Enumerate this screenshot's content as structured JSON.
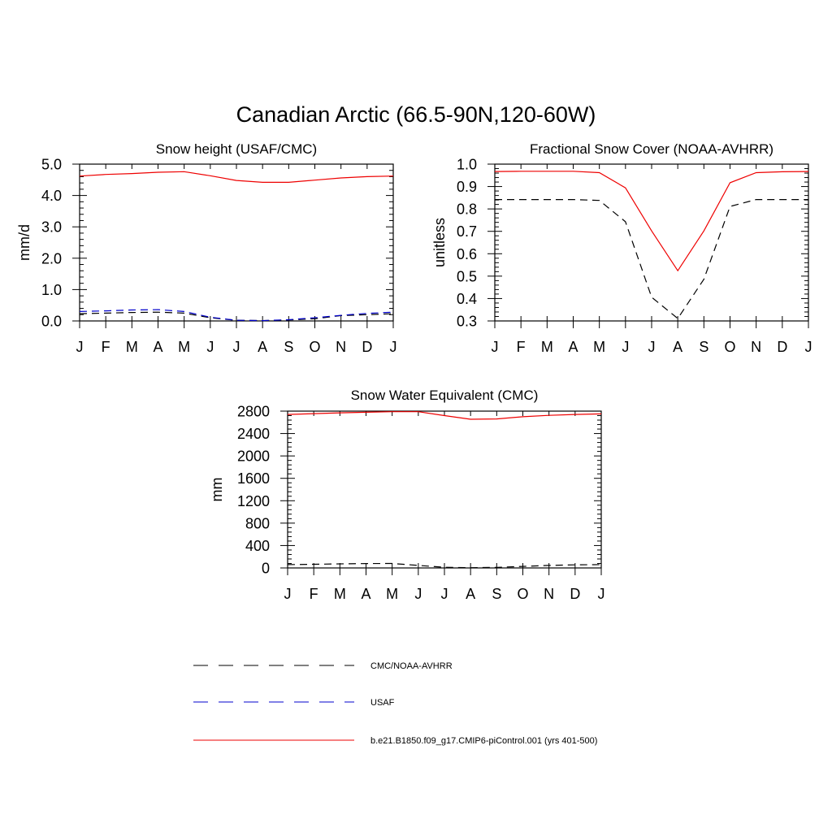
{
  "main_title": "Canadian Arctic (66.5-90N,120-60W)",
  "legend": {
    "entries": [
      {
        "label": "CMC/NOAA-AVHRR",
        "color": "#000000",
        "dash": "dashed"
      },
      {
        "label": "USAF",
        "color": "#0000cc",
        "dash": "dashed"
      },
      {
        "label": "b.e21.B1850.f09_g17.CMIP6-piControl.001 (yrs 401-500)",
        "color": "#ee0000",
        "dash": "solid"
      }
    ]
  },
  "chart_data": [
    {
      "type": "line",
      "title": "Snow height (USAF/CMC)",
      "ylabel": "mm/d",
      "xlabel": "",
      "categories": [
        "J",
        "F",
        "M",
        "A",
        "M",
        "J",
        "J",
        "A",
        "S",
        "O",
        "N",
        "D",
        "J"
      ],
      "yticks": [
        "0.0",
        "1.0",
        "2.0",
        "3.0",
        "4.0",
        "5.0"
      ],
      "ylim": [
        0,
        5
      ],
      "series": [
        {
          "name": "b.e21.B1850.f09_g17.CMIP6-piControl.001 (yrs 401-500)",
          "color": "#ee0000",
          "dash": "solid",
          "values": [
            4.62,
            4.67,
            4.7,
            4.74,
            4.76,
            4.63,
            4.48,
            4.42,
            4.42,
            4.49,
            4.56,
            4.6,
            4.62
          ]
        },
        {
          "name": "CMC/NOAA-AVHRR",
          "color": "#000000",
          "dash": "dashed",
          "values": [
            0.23,
            0.25,
            0.27,
            0.28,
            0.25,
            0.1,
            0.02,
            0.01,
            0.03,
            0.07,
            0.17,
            0.2,
            0.23
          ]
        },
        {
          "name": "USAF",
          "color": "#0000cc",
          "dash": "dashed",
          "values": [
            0.3,
            0.32,
            0.35,
            0.36,
            0.3,
            0.12,
            0.02,
            0.01,
            0.04,
            0.1,
            0.18,
            0.24,
            0.28
          ]
        }
      ]
    },
    {
      "type": "line",
      "title": "Fractional Snow Cover (NOAA-AVHRR)",
      "ylabel": "unitless",
      "xlabel": "",
      "categories": [
        "J",
        "F",
        "M",
        "A",
        "M",
        "J",
        "J",
        "A",
        "S",
        "O",
        "N",
        "D",
        "J"
      ],
      "yticks": [
        "0.3",
        "0.4",
        "0.5",
        "0.6",
        "0.7",
        "0.8",
        "0.9",
        "1.0"
      ],
      "ylim": [
        0.3,
        1.0
      ],
      "series": [
        {
          "name": "b.e21.B1850.f09_g17.CMIP6-piControl.001 (yrs 401-500)",
          "color": "#ee0000",
          "dash": "solid",
          "values": [
            0.967,
            0.968,
            0.968,
            0.968,
            0.962,
            0.894,
            0.702,
            0.524,
            0.702,
            0.917,
            0.962,
            0.966,
            0.967
          ]
        },
        {
          "name": "CMC/NOAA-AVHRR",
          "color": "#000000",
          "dash": "dashed",
          "values": [
            0.842,
            0.842,
            0.842,
            0.842,
            0.838,
            0.743,
            0.406,
            0.311,
            0.486,
            0.811,
            0.842,
            0.842,
            0.842
          ]
        }
      ]
    },
    {
      "type": "line",
      "title": "Snow Water Equivalent (CMC)",
      "ylabel": "mm",
      "xlabel": "",
      "categories": [
        "J",
        "F",
        "M",
        "A",
        "M",
        "J",
        "J",
        "A",
        "S",
        "O",
        "N",
        "D",
        "J"
      ],
      "yticks": [
        "0",
        "400",
        "800",
        "1200",
        "1600",
        "2000",
        "2400",
        "2800"
      ],
      "ylim": [
        0,
        2800
      ],
      "series": [
        {
          "name": "b.e21.B1850.f09_g17.CMIP6-piControl.001 (yrs 401-500)",
          "color": "#ee0000",
          "dash": "solid",
          "values": [
            2740,
            2755,
            2770,
            2780,
            2790,
            2790,
            2720,
            2655,
            2660,
            2700,
            2725,
            2740,
            2750
          ]
        },
        {
          "name": "CMC/NOAA-AVHRR",
          "color": "#000000",
          "dash": "dashed",
          "values": [
            60,
            65,
            72,
            78,
            80,
            45,
            12,
            5,
            10,
            28,
            45,
            55,
            60
          ]
        }
      ]
    }
  ]
}
